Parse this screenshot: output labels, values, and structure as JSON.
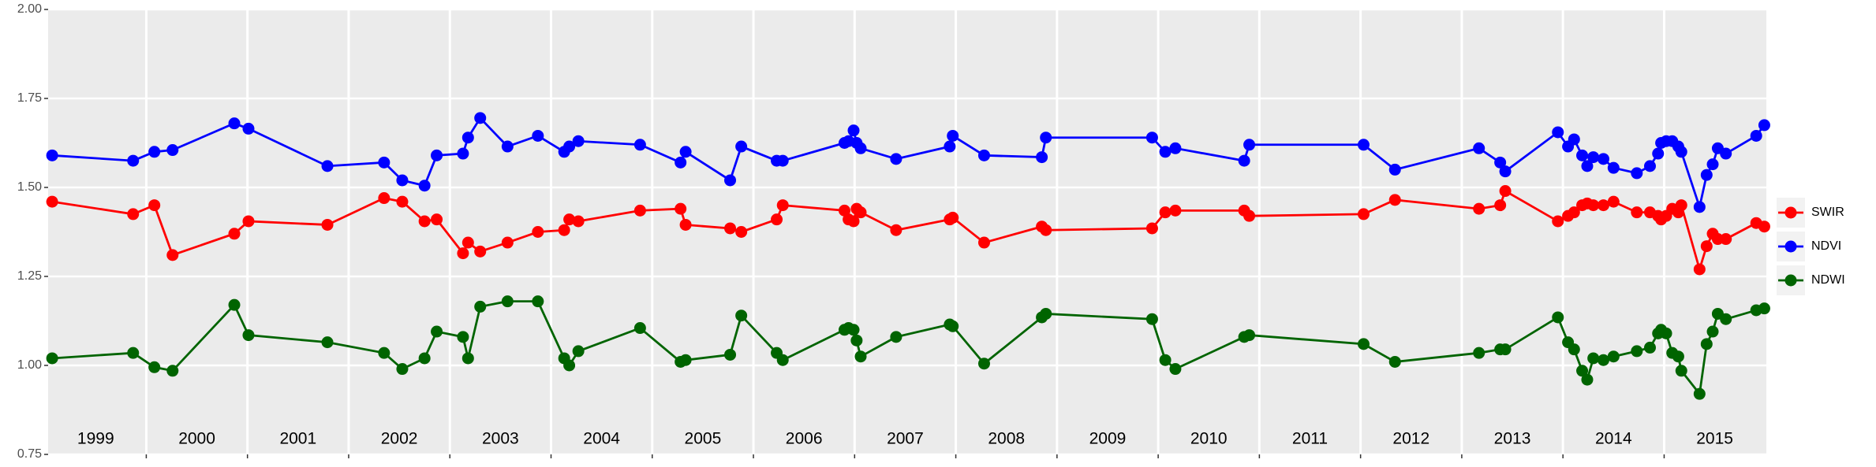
{
  "chart_data": {
    "type": "line",
    "x": [
      1999.07,
      1999.87,
      2000.08,
      2000.26,
      2000.87,
      2001.01,
      2001.79,
      2002.35,
      2002.53,
      2002.75,
      2002.87,
      2003.13,
      2003.18,
      2003.3,
      2003.57,
      2003.87,
      2004.13,
      2004.18,
      2004.27,
      2004.88,
      2005.28,
      2005.33,
      2005.77,
      2005.88,
      2006.23,
      2006.29,
      2006.9,
      2006.94,
      2006.99,
      2007.02,
      2007.06,
      2007.41,
      2007.94,
      2007.97,
      2008.28,
      2008.85,
      2008.89,
      2009.94,
      2010.07,
      2010.17,
      2010.85,
      2010.9,
      2012.03,
      2012.34,
      2013.17,
      2013.38,
      2013.43,
      2013.95,
      2014.05,
      2014.11,
      2014.19,
      2014.24,
      2014.3,
      2014.4,
      2014.5,
      2014.73,
      2014.86,
      2014.94,
      2014.97,
      2015.02,
      2015.08,
      2015.14,
      2015.17,
      2015.35,
      2015.42,
      2015.48,
      2015.53,
      2015.61,
      2015.91,
      2015.99
    ],
    "series": [
      {
        "name": "SWIR",
        "color": "#ff0000",
        "values": [
          1.46,
          1.425,
          1.45,
          1.31,
          1.37,
          1.405,
          1.395,
          1.47,
          1.46,
          1.405,
          1.41,
          1.315,
          1.345,
          1.32,
          1.345,
          1.375,
          1.38,
          1.41,
          1.405,
          1.435,
          1.44,
          1.395,
          1.385,
          1.375,
          1.41,
          1.45,
          1.435,
          1.41,
          1.405,
          1.44,
          1.43,
          1.38,
          1.41,
          1.415,
          1.345,
          1.39,
          1.38,
          1.385,
          1.43,
          1.435,
          1.435,
          1.42,
          1.425,
          1.465,
          1.44,
          1.45,
          1.49,
          1.405,
          1.42,
          1.43,
          1.45,
          1.455,
          1.45,
          1.45,
          1.46,
          1.43,
          1.43,
          1.42,
          1.41,
          1.42,
          1.44,
          1.43,
          1.45,
          1.27,
          1.335,
          1.37,
          1.355,
          1.355,
          1.4,
          1.39
        ]
      },
      {
        "name": "NDVI",
        "color": "#0000ff",
        "values": [
          1.59,
          1.575,
          1.6,
          1.605,
          1.68,
          1.665,
          1.56,
          1.57,
          1.52,
          1.505,
          1.59,
          1.595,
          1.64,
          1.695,
          1.615,
          1.645,
          1.6,
          1.615,
          1.63,
          1.62,
          1.57,
          1.6,
          1.52,
          1.615,
          1.575,
          1.575,
          1.625,
          1.63,
          1.66,
          1.625,
          1.61,
          1.58,
          1.615,
          1.645,
          1.59,
          1.585,
          1.64,
          1.64,
          1.6,
          1.61,
          1.575,
          1.62,
          1.62,
          1.55,
          1.61,
          1.57,
          1.545,
          1.655,
          1.615,
          1.635,
          1.59,
          1.56,
          1.585,
          1.58,
          1.555,
          1.54,
          1.56,
          1.595,
          1.625,
          1.63,
          1.63,
          1.615,
          1.6,
          1.445,
          1.535,
          1.565,
          1.61,
          1.595,
          1.645,
          1.675
        ]
      },
      {
        "name": "NDWI",
        "color": "#006400",
        "values": [
          1.02,
          1.035,
          0.995,
          0.985,
          1.17,
          1.085,
          1.065,
          1.035,
          0.99,
          1.02,
          1.095,
          1.08,
          1.02,
          1.165,
          1.18,
          1.18,
          1.02,
          1.0,
          1.04,
          1.105,
          1.01,
          1.015,
          1.03,
          1.14,
          1.035,
          1.015,
          1.1,
          1.105,
          1.1,
          1.07,
          1.025,
          1.08,
          1.115,
          1.11,
          1.005,
          1.135,
          1.145,
          1.13,
          1.015,
          0.99,
          1.08,
          1.085,
          1.06,
          1.01,
          1.035,
          1.045,
          1.045,
          1.135,
          1.065,
          1.045,
          0.985,
          0.96,
          1.02,
          1.015,
          1.025,
          1.04,
          1.05,
          1.09,
          1.1,
          1.09,
          1.035,
          1.025,
          0.985,
          0.92,
          1.06,
          1.095,
          1.145,
          1.13,
          1.155,
          1.16
        ]
      }
    ],
    "xlim": [
      1999.03,
      2016.01
    ],
    "xticks": [
      2000,
      2001,
      2002,
      2003,
      2004,
      2005,
      2006,
      2007,
      2008,
      2009,
      2010,
      2011,
      2012,
      2013,
      2014,
      2015
    ],
    "year_labels": [
      {
        "value": 1999.5,
        "label": "1999"
      },
      {
        "value": 2000.5,
        "label": "2000"
      },
      {
        "value": 2001.5,
        "label": "2001"
      },
      {
        "value": 2002.5,
        "label": "2002"
      },
      {
        "value": 2003.5,
        "label": "2003"
      },
      {
        "value": 2004.5,
        "label": "2004"
      },
      {
        "value": 2005.5,
        "label": "2005"
      },
      {
        "value": 2006.5,
        "label": "2006"
      },
      {
        "value": 2007.5,
        "label": "2007"
      },
      {
        "value": 2008.5,
        "label": "2008"
      },
      {
        "value": 2009.5,
        "label": "2009"
      },
      {
        "value": 2010.5,
        "label": "2010"
      },
      {
        "value": 2011.5,
        "label": "2011"
      },
      {
        "value": 2012.5,
        "label": "2012"
      },
      {
        "value": 2013.5,
        "label": "2013"
      },
      {
        "value": 2014.5,
        "label": "2014"
      },
      {
        "value": 2015.5,
        "label": "2015"
      }
    ],
    "ylim": [
      0.75,
      2.0
    ],
    "yticks": [
      0.75,
      {
        "value": 1.0,
        "label": "1.00"
      },
      1.25,
      {
        "value": 1.5,
        "label": "1.50"
      },
      1.75,
      {
        "value": 2.0,
        "label": "2.00"
      }
    ],
    "grid": true,
    "legend": "right"
  }
}
